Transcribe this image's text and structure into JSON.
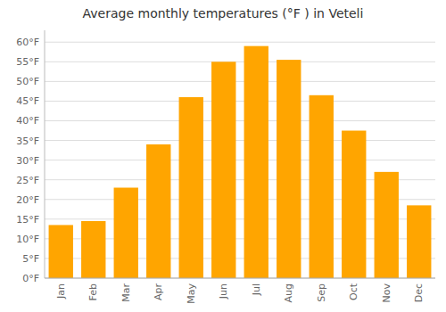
{
  "chart_data": {
    "type": "bar",
    "title": "Average monthly temperatures (°F ) in Veteli",
    "categories": [
      "Jan",
      "Feb",
      "Mar",
      "Apr",
      "May",
      "Jun",
      "Jul",
      "Aug",
      "Sep",
      "Oct",
      "Nov",
      "Dec"
    ],
    "values": [
      13.5,
      14.5,
      23.0,
      34.0,
      46.0,
      55.0,
      59.0,
      55.5,
      46.5,
      37.5,
      27.0,
      18.5
    ],
    "color": "#FFA500",
    "ylim": [
      0,
      63
    ],
    "yticks": [
      {
        "value": 0,
        "label": "0°F"
      },
      {
        "value": 5,
        "label": "5°F"
      },
      {
        "value": 10,
        "label": "10°F"
      },
      {
        "value": 15,
        "label": "15°F"
      },
      {
        "value": 20,
        "label": "20°F"
      },
      {
        "value": 25,
        "label": "25°F"
      },
      {
        "value": 30,
        "label": "30°F"
      },
      {
        "value": 35,
        "label": "35°F"
      },
      {
        "value": 40,
        "label": "40°F"
      },
      {
        "value": 45,
        "label": "45°F"
      },
      {
        "value": 50,
        "label": "50°F"
      },
      {
        "value": 55,
        "label": "55°F"
      },
      {
        "value": 60,
        "label": "60°F"
      }
    ],
    "grid": true
  }
}
